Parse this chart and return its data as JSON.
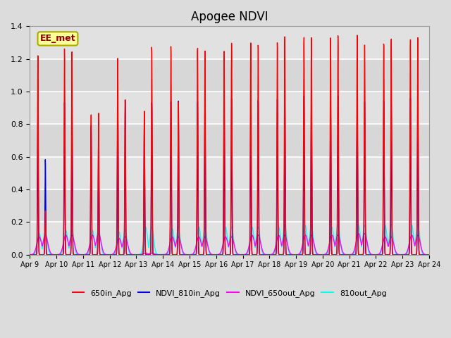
{
  "title": "Apogee NDVI",
  "annotation": "EE_met",
  "ylim": [
    0.0,
    1.4
  ],
  "yticks": [
    0.0,
    0.2,
    0.4,
    0.6,
    0.8,
    1.0,
    1.2,
    1.4
  ],
  "xtick_labels": [
    "Apr 9",
    "Apr 10",
    "Apr 11",
    "Apr 12",
    "Apr 13",
    "Apr 14",
    "Apr 15",
    "Apr 16",
    "Apr 17",
    "Apr 18",
    "Apr 19",
    "Apr 20",
    "Apr 21",
    "Apr 22",
    "Apr 23",
    "Apr 24"
  ],
  "n_days": 15,
  "series": {
    "650in_Apg": {
      "color": "#FF0000",
      "lw": 1.0
    },
    "NDVI_810in_Apg": {
      "color": "#0000EE",
      "lw": 1.0
    },
    "NDVI_650out_Apg": {
      "color": "#FF00FF",
      "lw": 1.0
    },
    "810out_Apg": {
      "color": "#00FFFF",
      "lw": 1.0
    }
  },
  "bg_color": "#DCDCDC",
  "plot_bg": "#E8E8E8",
  "grid_color": "#FFFFFF",
  "peaks_red": [
    1.22,
    1.27,
    0.88,
    1.21,
    0.88,
    1.29,
    1.29,
    1.25,
    1.3,
    1.32,
    1.35,
    1.33,
    1.35,
    1.32,
    1.33
  ],
  "peaks2_red": [
    0.27,
    1.27,
    0.87,
    0.95,
    1.29,
    0.95,
    1.25,
    1.3,
    1.31,
    1.35,
    1.33,
    1.35,
    1.32,
    1.33,
    1.33
  ],
  "peaks_blue": [
    0.89,
    0.94,
    0.82,
    0.94,
    0.82,
    0.95,
    0.96,
    0.96,
    0.96,
    0.97,
    0.99,
    0.98,
    0.98,
    0.97,
    0.97
  ],
  "peaks2_blue": [
    0.59,
    0.94,
    0.7,
    0.95,
    0.95,
    0.96,
    0.96,
    0.96,
    0.97,
    0.99,
    0.98,
    0.98,
    0.97,
    0.97,
    0.97
  ],
  "peaks_magenta": [
    0.11,
    0.12,
    0.12,
    0.1,
    0.01,
    0.11,
    0.11,
    0.11,
    0.12,
    0.12,
    0.12,
    0.12,
    0.13,
    0.11,
    0.12
  ],
  "peaks2_magenta": [
    0.12,
    0.12,
    0.13,
    0.11,
    0.01,
    0.11,
    0.11,
    0.11,
    0.12,
    0.12,
    0.12,
    0.12,
    0.13,
    0.11,
    0.12
  ],
  "peaks_cyan": [
    0.13,
    0.15,
    0.15,
    0.14,
    0.17,
    0.16,
    0.17,
    0.17,
    0.17,
    0.17,
    0.18,
    0.17,
    0.18,
    0.18,
    0.18
  ],
  "peaks2_cyan": [
    0.14,
    0.15,
    0.16,
    0.15,
    0.17,
    0.17,
    0.17,
    0.17,
    0.17,
    0.18,
    0.18,
    0.18,
    0.18,
    0.19,
    0.19
  ]
}
